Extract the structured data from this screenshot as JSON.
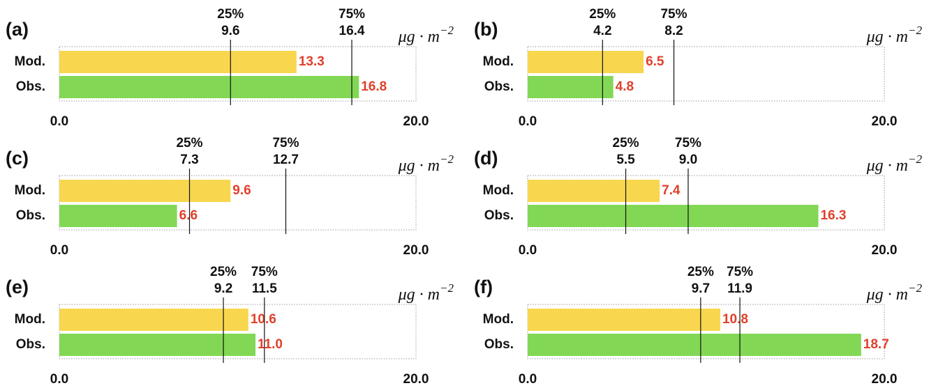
{
  "chart_data": [
    {
      "type": "bar",
      "orientation": "horizontal",
      "panel": "(a)",
      "unit_base": "μg · m",
      "unit_exponent": "−2",
      "categories": [
        "Mod.",
        "Obs."
      ],
      "values": [
        13.3,
        16.8
      ],
      "value_labels": [
        "13.3",
        "16.8"
      ],
      "colors": [
        "#f8d74f",
        "#82d855"
      ],
      "percentiles": [
        {
          "name": "25%",
          "value": 9.6,
          "label": "9.6"
        },
        {
          "name": "75%",
          "value": 16.4,
          "label": "16.4"
        }
      ],
      "xlim": [
        0,
        20
      ],
      "xticks": [
        {
          "value": 0,
          "label": "0.0"
        },
        {
          "value": 20,
          "label": "20.0"
        }
      ]
    },
    {
      "type": "bar",
      "orientation": "horizontal",
      "panel": "(b)",
      "unit_base": "μg · m",
      "unit_exponent": "−2",
      "categories": [
        "Mod.",
        "Obs."
      ],
      "values": [
        6.5,
        4.8
      ],
      "value_labels": [
        "6.5",
        "4.8"
      ],
      "colors": [
        "#f8d74f",
        "#82d855"
      ],
      "percentiles": [
        {
          "name": "25%",
          "value": 4.2,
          "label": "4.2"
        },
        {
          "name": "75%",
          "value": 8.2,
          "label": "8.2"
        }
      ],
      "xlim": [
        0,
        20
      ],
      "xticks": [
        {
          "value": 0,
          "label": "0.0"
        },
        {
          "value": 20,
          "label": "20.0"
        }
      ]
    },
    {
      "type": "bar",
      "orientation": "horizontal",
      "panel": "(c)",
      "unit_base": "μg · m",
      "unit_exponent": "−2",
      "categories": [
        "Mod.",
        "Obs."
      ],
      "values": [
        9.6,
        6.6
      ],
      "value_labels": [
        "9.6",
        "6.6"
      ],
      "colors": [
        "#f8d74f",
        "#82d855"
      ],
      "percentiles": [
        {
          "name": "25%",
          "value": 7.3,
          "label": "7.3"
        },
        {
          "name": "75%",
          "value": 12.7,
          "label": "12.7"
        }
      ],
      "xlim": [
        0,
        20
      ],
      "xticks": [
        {
          "value": 0,
          "label": "0.0"
        },
        {
          "value": 20,
          "label": "20.0"
        }
      ]
    },
    {
      "type": "bar",
      "orientation": "horizontal",
      "panel": "(d)",
      "unit_base": "μg · m",
      "unit_exponent": "−2",
      "categories": [
        "Mod.",
        "Obs."
      ],
      "values": [
        7.4,
        16.3
      ],
      "value_labels": [
        "7.4",
        "16.3"
      ],
      "colors": [
        "#f8d74f",
        "#82d855"
      ],
      "percentiles": [
        {
          "name": "25%",
          "value": 5.5,
          "label": "5.5"
        },
        {
          "name": "75%",
          "value": 9.0,
          "label": "9.0"
        }
      ],
      "xlim": [
        0,
        20
      ],
      "xticks": [
        {
          "value": 0,
          "label": "0.0"
        },
        {
          "value": 20,
          "label": "20.0"
        }
      ]
    },
    {
      "type": "bar",
      "orientation": "horizontal",
      "panel": "(e)",
      "unit_base": "μg · m",
      "unit_exponent": "−2",
      "categories": [
        "Mod.",
        "Obs."
      ],
      "values": [
        10.6,
        11.0
      ],
      "value_labels": [
        "10.6",
        "11.0"
      ],
      "colors": [
        "#f8d74f",
        "#82d855"
      ],
      "percentiles": [
        {
          "name": "25%",
          "value": 9.2,
          "label": "9.2"
        },
        {
          "name": "75%",
          "value": 11.5,
          "label": "11.5"
        }
      ],
      "xlim": [
        0,
        20
      ],
      "xticks": [
        {
          "value": 0,
          "label": "0.0"
        },
        {
          "value": 20,
          "label": "20.0"
        }
      ]
    },
    {
      "type": "bar",
      "orientation": "horizontal",
      "panel": "(f)",
      "unit_base": "μg · m",
      "unit_exponent": "−2",
      "categories": [
        "Mod.",
        "Obs."
      ],
      "values": [
        10.8,
        18.7
      ],
      "value_labels": [
        "10.8",
        "18.7"
      ],
      "colors": [
        "#f8d74f",
        "#82d855"
      ],
      "percentiles": [
        {
          "name": "25%",
          "value": 9.7,
          "label": "9.7"
        },
        {
          "name": "75%",
          "value": 11.9,
          "label": "11.9"
        }
      ],
      "xlim": [
        0,
        20
      ],
      "xticks": [
        {
          "value": 0,
          "label": "0.0"
        },
        {
          "value": 20,
          "label": "20.0"
        }
      ]
    }
  ]
}
